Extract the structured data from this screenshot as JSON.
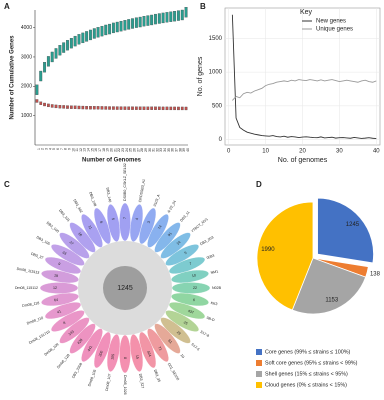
{
  "chart_data": [
    {
      "type": "box",
      "panel": "A",
      "x_label": "Number of Genomes",
      "y_label": "Number of Cumulative Genes",
      "categories": [
        "1",
        "2",
        "3",
        "4",
        "5",
        "6",
        "7",
        "8",
        "9",
        "10",
        "11",
        "12",
        "13",
        "14",
        "15",
        "16",
        "17",
        "18",
        "19",
        "20",
        "21",
        "22",
        "23",
        "24",
        "25",
        "26",
        "27",
        "28",
        "29",
        "30",
        "31",
        "32",
        "33",
        "34",
        "35",
        "36",
        "37",
        "38",
        "39",
        "40"
      ],
      "ylim": [
        0,
        4600
      ],
      "yticks": [
        1000,
        2000,
        3000,
        4000
      ],
      "series": [
        {
          "color": "#2a9d8f",
          "values": [
            1880,
            2350,
            2650,
            2850,
            3000,
            3120,
            3230,
            3320,
            3400,
            3470,
            3540,
            3600,
            3650,
            3700,
            3750,
            3800,
            3840,
            3880,
            3920,
            3950,
            3990,
            4020,
            4050,
            4080,
            4110,
            4140,
            4170,
            4190,
            4220,
            4240,
            4260,
            4290,
            4310,
            4330,
            4350,
            4370,
            4390,
            4410,
            4430,
            4526
          ]
        },
        {
          "color": "#c0504d",
          "values": [
            1500,
            1420,
            1380,
            1350,
            1330,
            1315,
            1305,
            1298,
            1292,
            1287,
            1283,
            1279,
            1276,
            1273,
            1270,
            1268,
            1266,
            1264,
            1262,
            1260,
            1259,
            1258,
            1257,
            1256,
            1255,
            1254,
            1253,
            1252,
            1251,
            1250,
            1250,
            1249,
            1249,
            1248,
            1248,
            1247,
            1247,
            1246,
            1246,
            1245
          ]
        }
      ]
    },
    {
      "type": "line",
      "panel": "B",
      "x_label": "No. of genomes",
      "y_label": "No. of genes",
      "legend_title": "Key",
      "legend": "upper right",
      "grid": true,
      "x": [
        1,
        2,
        3,
        4,
        5,
        6,
        7,
        8,
        9,
        10,
        11,
        12,
        13,
        14,
        15,
        16,
        17,
        18,
        19,
        20,
        21,
        22,
        23,
        24,
        25,
        26,
        27,
        28,
        29,
        30,
        31,
        32,
        33,
        34,
        35,
        36,
        37,
        38,
        39,
        40
      ],
      "xlim": [
        -1,
        41
      ],
      "xticks": [
        0,
        10,
        20,
        30,
        40
      ],
      "ylim": [
        -80,
        1950
      ],
      "yticks": [
        0,
        500,
        1000,
        1500
      ],
      "series": [
        {
          "name": "New genes",
          "color": "#333333",
          "values": [
            1850,
            320,
            180,
            140,
            110,
            95,
            80,
            70,
            60,
            55,
            50,
            60,
            45,
            40,
            50,
            35,
            45,
            40,
            30,
            38,
            42,
            35,
            30,
            28,
            40,
            25,
            30,
            35,
            22,
            28,
            30,
            25,
            20,
            32,
            25,
            18,
            22,
            28,
            20,
            15
          ]
        },
        {
          "name": "Unique genes",
          "color": "#9a9a9a",
          "values": [
            580,
            640,
            620,
            680,
            700,
            690,
            720,
            740,
            760,
            800,
            820,
            830,
            850,
            860,
            870,
            860,
            880,
            870,
            890,
            880,
            875,
            890,
            880,
            870,
            885,
            870,
            880,
            890,
            875,
            860,
            870,
            880,
            870,
            860,
            850,
            870,
            880,
            860,
            850,
            870
          ]
        }
      ]
    },
    {
      "type": "flower",
      "panel": "C",
      "center_value": 1245,
      "petals": [
        {
          "name": "DS0B0_CSKLZ_SEL02",
          "value": 7,
          "color": "#8f8ff0"
        },
        {
          "name": "CROSSB3_A1",
          "value": 4,
          "color": "#8696f0"
        },
        {
          "name": "0103_A",
          "value": 3,
          "color": "#7c9cee"
        },
        {
          "name": "A-22_24",
          "value": 74,
          "color": "#74a3ec"
        },
        {
          "name": "DB3_11",
          "value": 91,
          "color": "#6eaae8"
        },
        {
          "name": "YTBCT_NV1",
          "value": 14,
          "color": "#69b2e0"
        },
        {
          "name": "DB3_003",
          "value": 5,
          "color": "#66bad6"
        },
        {
          "name": "0083",
          "value": 7,
          "color": "#66c2c8"
        },
        {
          "name": "NM1",
          "value": 10,
          "color": "#6ac8b6"
        },
        {
          "name": "N02B",
          "value": 22,
          "color": "#72cca4"
        },
        {
          "name": "KK3",
          "value": 6,
          "color": "#7ccf92"
        },
        {
          "name": "0B-D",
          "value": 437,
          "color": "#8ed08a"
        },
        {
          "name": "S17-8",
          "value": 25,
          "color": "#a6cc84"
        },
        {
          "name": "S17-6",
          "value": 29,
          "color": "#c8b47e"
        },
        {
          "name": "19",
          "value": 61,
          "color": "#e09a86"
        },
        {
          "name": "D01_SE100",
          "value": 71,
          "color": "#ec8a8e"
        },
        {
          "name": "DB3_35",
          "value": 424,
          "color": "#f08296"
        },
        {
          "name": "DB3_327",
          "value": 15,
          "color": "#f27e9c"
        },
        {
          "name": "Dm08_1026",
          "value": 8,
          "color": "#f27ca2"
        },
        {
          "name": "Dm08_107",
          "value": 105,
          "color": "#f07ca8"
        },
        {
          "name": "Dm08_106",
          "value": 200,
          "color": "#ee7cae"
        },
        {
          "name": "DB3_3308",
          "value": 441,
          "color": "#ec7eb2"
        },
        {
          "name": "Dm08_128",
          "value": 428,
          "color": "#ea80b6"
        },
        {
          "name": "Dm08_109",
          "value": 143,
          "color": "#e882ba"
        },
        {
          "name": "Dm08_131719",
          "value": 8,
          "color": "#e684be"
        },
        {
          "name": "Dm08_110",
          "value": 41,
          "color": "#e286c4"
        },
        {
          "name": "Dm08_118",
          "value": 64,
          "color": "#dc88ca"
        },
        {
          "name": "Dm08_115112",
          "value": 12,
          "color": "#d48ad0"
        },
        {
          "name": "Dm08_115113",
          "value": 18,
          "color": "#ca8cd6"
        },
        {
          "name": "DB3_37",
          "value": 9,
          "color": "#c08ede"
        },
        {
          "name": "DB3_105",
          "value": 33,
          "color": "#b690e4"
        },
        {
          "name": "DB3_100",
          "value": 27,
          "color": "#ac90e8"
        },
        {
          "name": "DB3_101",
          "value": 16,
          "color": "#a290ec"
        },
        {
          "name": "DB3_342",
          "value": 11,
          "color": "#9a90ee"
        },
        {
          "name": "DB3_148",
          "value": 6,
          "color": "#9490f0"
        },
        {
          "name": "DB3_140",
          "value": 5,
          "color": "#928ff0"
        }
      ]
    },
    {
      "type": "pie",
      "panel": "D",
      "explode_index": 0,
      "categories": [
        "Core genes (99% ≤ strains ≤ 100%)",
        "Soft core genes (95% ≤ strains < 99%)",
        "Shell genes (15% ≤ strains < 95%)",
        "Cloud genes (0% ≤ strains < 15%)"
      ],
      "values": [
        1245,
        138,
        1153,
        1990
      ],
      "colors": [
        "#4472c4",
        "#ed7d31",
        "#a5a5a5",
        "#ffc000"
      ]
    }
  ]
}
